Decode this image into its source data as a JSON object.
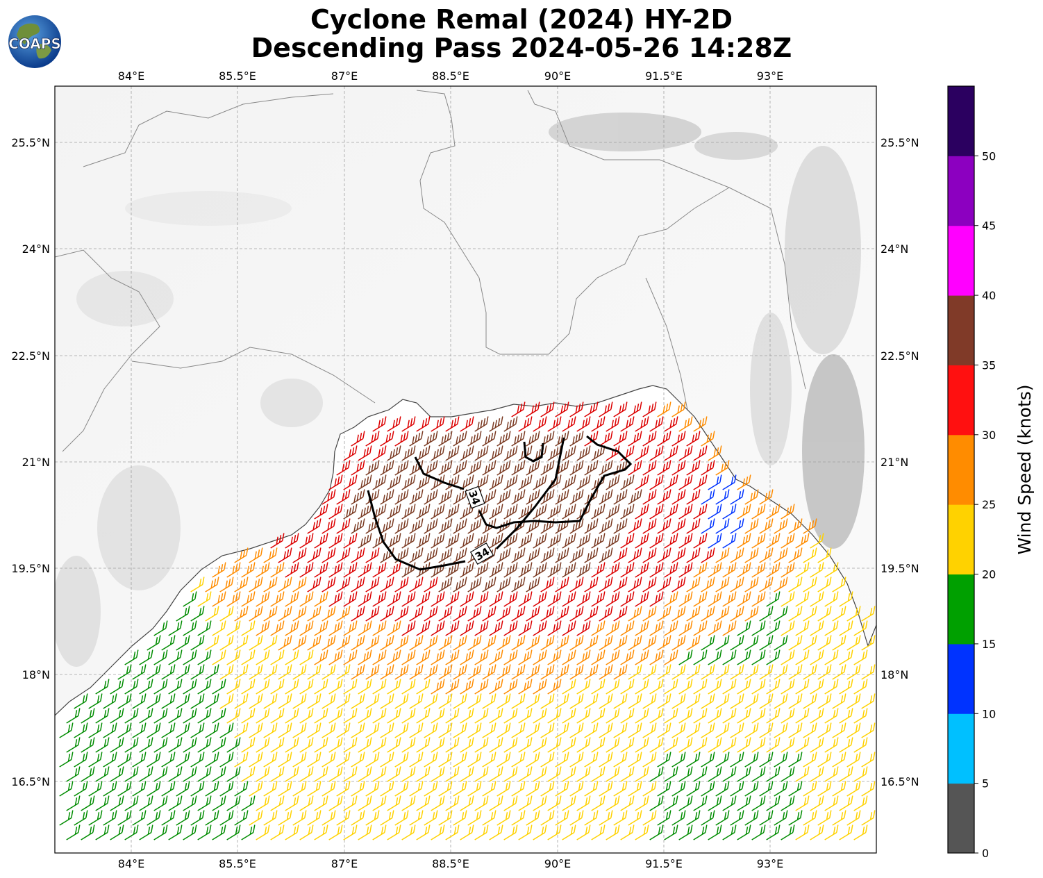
{
  "header": {
    "title_line1": "Cyclone Remal (2024) HY-2D",
    "title_line2": "Descending Pass 2024-05-26 14:28Z",
    "logo_text": "COAPS"
  },
  "map": {
    "lon_ticks": [
      "84°E",
      "85.5°E",
      "87°E",
      "88.5°E",
      "90°E",
      "91.5°E",
      "93°E"
    ],
    "lat_ticks": [
      "25.5°N",
      "24°N",
      "22.5°N",
      "21°N",
      "19.5°N",
      "18°N",
      "16.5°N"
    ],
    "contour_label": "34",
    "wind_legend_colors": {
      "green": "#008c00",
      "yellow": "#ffd200",
      "orange": "#ff8c00",
      "red": "#dc0000",
      "brown": "#7a3a22",
      "blue": "#0033ff"
    }
  },
  "colorbar": {
    "label": "Wind Speed (knots)",
    "ticks": [
      "0",
      "5",
      "10",
      "15",
      "20",
      "25",
      "30",
      "35",
      "40",
      "45",
      "50"
    ],
    "colors": [
      "#555555",
      "#00c0ff",
      "#0033ff",
      "#00a000",
      "#ffd200",
      "#ff8c00",
      "#ff1010",
      "#803a28",
      "#ff00ff",
      "#8c00c0",
      "#2b0060"
    ]
  }
}
